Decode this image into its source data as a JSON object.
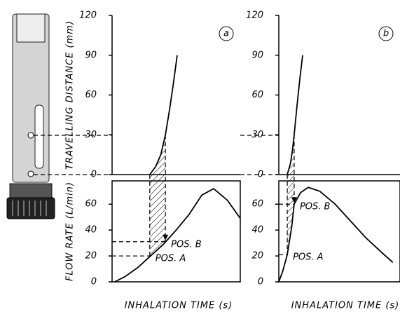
{
  "chart_data": [
    {
      "type": "line",
      "panel_label": "a",
      "ylabel": "TRAVELLING DISTANCE (mm)",
      "x": [
        1.47,
        1.7,
        1.9,
        2.08,
        2.25,
        2.4,
        2.54
      ],
      "series": [
        {
          "color": "#000000",
          "values": [
            0,
            6,
            15,
            30,
            50,
            70,
            90
          ]
        }
      ],
      "xlim": [
        0,
        5
      ],
      "ylim": [
        0,
        120
      ],
      "yticks": [
        0,
        30,
        60,
        90,
        120
      ]
    },
    {
      "type": "line",
      "ylabel": "FLOW RATE (L/min)",
      "xlabel": "INHALATION TIME (s)",
      "x": [
        0.1,
        0.5,
        1,
        1.5,
        2,
        2.5,
        3,
        3.5,
        3.96,
        4.5,
        5
      ],
      "series": [
        {
          "color": "#000000",
          "values": [
            0,
            4,
            11,
            20,
            29,
            40,
            52,
            67,
            72,
            63,
            49
          ]
        }
      ],
      "xlim": [
        0,
        5
      ],
      "ylim": [
        0,
        78
      ],
      "yticks": [
        0,
        20,
        40,
        60
      ],
      "annotations": [
        {
          "text": "POS. A",
          "x": 1.47,
          "y": 20
        },
        {
          "text": "POS. B",
          "x": 2.08,
          "y": 31
        }
      ]
    },
    {
      "type": "line",
      "panel_label": "b",
      "x": [
        0.33,
        0.45,
        0.53,
        0.6,
        0.7,
        0.82,
        0.93
      ],
      "series": [
        {
          "color": "#000000",
          "values": [
            0,
            8,
            18,
            30,
            50,
            72,
            90
          ]
        }
      ],
      "xlim": [
        0,
        4.73
      ],
      "ylim": [
        0,
        120
      ],
      "yticks": [
        0,
        30,
        60,
        90,
        120
      ]
    },
    {
      "type": "line",
      "xlabel": "INHALATION TIME (s)",
      "x": [
        0,
        0.15,
        0.33,
        0.5,
        0.6,
        0.85,
        1.15,
        1.6,
        2.2,
        2.8,
        3.4,
        4,
        4.45
      ],
      "series": [
        {
          "color": "#000000",
          "values": [
            0,
            8,
            21,
            42,
            60,
            69,
            73,
            70,
            60,
            47,
            34,
            23,
            15
          ]
        }
      ],
      "xlim": [
        0,
        4.73
      ],
      "ylim": [
        0,
        78
      ],
      "yticks": [
        0,
        20,
        40,
        60
      ],
      "annotations": [
        {
          "text": "POS. A",
          "x": 0.33,
          "y": 21
        },
        {
          "text": "POS. B",
          "x": 0.6,
          "y": 60
        }
      ]
    }
  ]
}
